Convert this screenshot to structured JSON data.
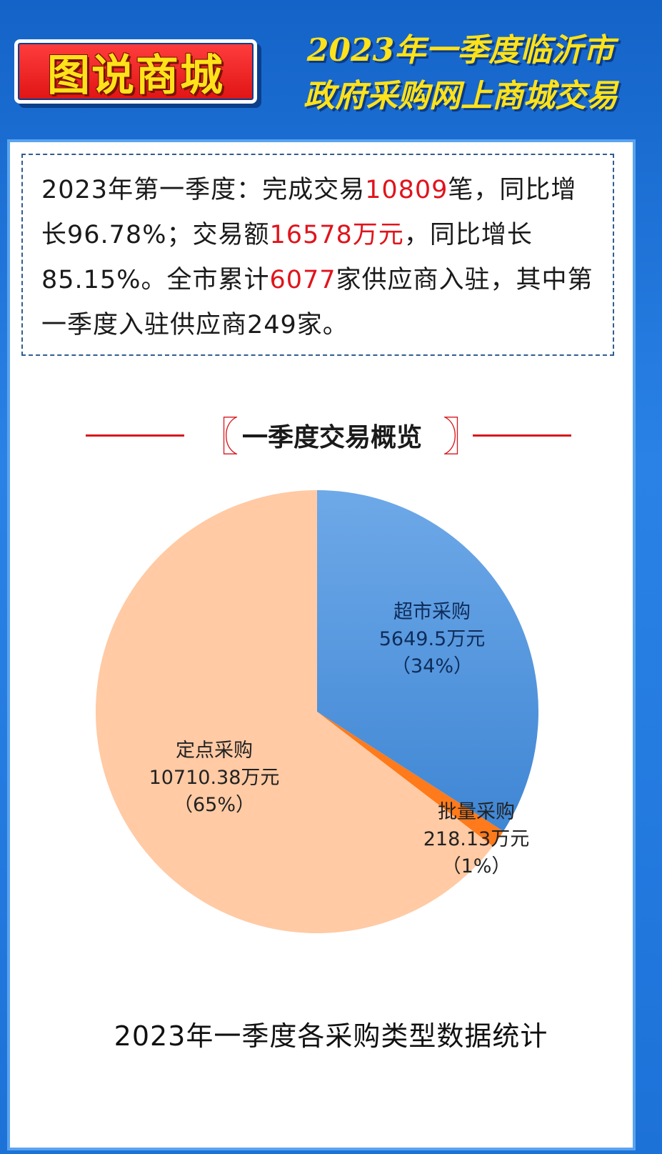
{
  "header": {
    "badge": "图说商城",
    "title_line1": "2023年一季度临沂市",
    "title_line2": "政府采购网上商城交易"
  },
  "summary": {
    "t1": "2023年第一季度：完成交易",
    "v1": "10809",
    "t2": "笔，同比增长96.78%；交易额",
    "v2": "16578万元",
    "t3": "，同比增长85.15%。全市累计",
    "v3": "6077",
    "t4": "家供应商入驻，其中第一季度入驻供应商249家。"
  },
  "section_title": "一季度交易概览",
  "chart_data": {
    "type": "pie",
    "title": "2023年一季度各采购类型数据统计",
    "unit": "万元",
    "slices": [
      {
        "name": "超市采购",
        "value": 5649.5,
        "value_label": "5649.5万元",
        "percent_label": "（34%）",
        "color": "#4a90d9"
      },
      {
        "name": "批量采购",
        "value": 218.13,
        "value_label": "218.13万元",
        "percent_label": "（1%）",
        "color": "#ff7a1a"
      },
      {
        "name": "定点采购",
        "value": 10710.38,
        "value_label": "10710.38万元",
        "percent_label": "（65%）",
        "color": "#ffcaa4"
      }
    ]
  }
}
